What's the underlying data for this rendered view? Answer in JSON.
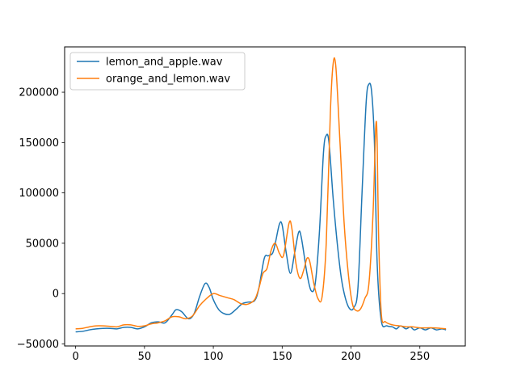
{
  "chart_data": {
    "type": "line",
    "xlim": [
      -8,
      283
    ],
    "ylim": [
      -52000,
      245000
    ],
    "x_ticks": [
      0,
      50,
      100,
      150,
      200,
      250
    ],
    "y_ticks": [
      -50000,
      0,
      50000,
      100000,
      150000,
      200000
    ],
    "x_tick_labels": [
      "0",
      "50",
      "100",
      "150",
      "200",
      "250"
    ],
    "y_tick_labels": [
      "−50000",
      "0",
      "50000",
      "100000",
      "150000",
      "200000"
    ],
    "legend_position": "top-left",
    "grid": false,
    "series": [
      {
        "name": "lemon_and_apple.wav",
        "color": "#1f77b4",
        "points": [
          [
            0,
            -38000
          ],
          [
            5,
            -37500
          ],
          [
            10,
            -36000
          ],
          [
            15,
            -35000
          ],
          [
            20,
            -34500
          ],
          [
            25,
            -34500
          ],
          [
            30,
            -35000
          ],
          [
            35,
            -33500
          ],
          [
            40,
            -33500
          ],
          [
            45,
            -35000
          ],
          [
            50,
            -33000
          ],
          [
            55,
            -29000
          ],
          [
            60,
            -28000
          ],
          [
            65,
            -29000
          ],
          [
            70,
            -21000
          ],
          [
            73,
            -16000
          ],
          [
            77,
            -18000
          ],
          [
            82,
            -25000
          ],
          [
            86,
            -20000
          ],
          [
            90,
            -3000
          ],
          [
            94,
            10000
          ],
          [
            97,
            6000
          ],
          [
            100,
            -6000
          ],
          [
            104,
            -16000
          ],
          [
            108,
            -20000
          ],
          [
            112,
            -20500
          ],
          [
            117,
            -15000
          ],
          [
            121,
            -10000
          ],
          [
            125,
            -8500
          ],
          [
            130,
            -7000
          ],
          [
            133,
            5000
          ],
          [
            137,
            35000
          ],
          [
            140,
            37500
          ],
          [
            143,
            40000
          ],
          [
            145,
            50000
          ],
          [
            148,
            69000
          ],
          [
            150,
            68000
          ],
          [
            153,
            40000
          ],
          [
            156,
            20000
          ],
          [
            159,
            40000
          ],
          [
            162,
            61000
          ],
          [
            164,
            55000
          ],
          [
            168,
            20000
          ],
          [
            171,
            3000
          ],
          [
            174,
            10000
          ],
          [
            177,
            60000
          ],
          [
            180,
            140000
          ],
          [
            182,
            157000
          ],
          [
            184,
            150000
          ],
          [
            187,
            95000
          ],
          [
            190,
            50000
          ],
          [
            193,
            15000
          ],
          [
            196,
            -5000
          ],
          [
            199,
            -15000
          ],
          [
            202,
            -14000
          ],
          [
            205,
            5000
          ],
          [
            208,
            100000
          ],
          [
            211,
            190000
          ],
          [
            213,
            208000
          ],
          [
            215,
            200000
          ],
          [
            217,
            150000
          ],
          [
            219,
            30000
          ],
          [
            222,
            -27000
          ],
          [
            226,
            -32000
          ],
          [
            230,
            -33000
          ],
          [
            233,
            -35000
          ],
          [
            236,
            -32000
          ],
          [
            240,
            -35000
          ],
          [
            243,
            -33000
          ],
          [
            246,
            -36000
          ],
          [
            250,
            -34000
          ],
          [
            254,
            -36000
          ],
          [
            258,
            -34000
          ],
          [
            262,
            -36000
          ],
          [
            266,
            -35000
          ],
          [
            269,
            -36000
          ]
        ]
      },
      {
        "name": "orange_and_lemon.wav",
        "color": "#ff7f0e",
        "points": [
          [
            0,
            -35000
          ],
          [
            5,
            -34500
          ],
          [
            10,
            -33000
          ],
          [
            15,
            -32000
          ],
          [
            20,
            -32000
          ],
          [
            25,
            -32500
          ],
          [
            30,
            -33000
          ],
          [
            35,
            -31000
          ],
          [
            40,
            -31000
          ],
          [
            45,
            -32500
          ],
          [
            50,
            -32000
          ],
          [
            55,
            -30000
          ],
          [
            60,
            -29000
          ],
          [
            65,
            -27000
          ],
          [
            70,
            -23000
          ],
          [
            75,
            -23000
          ],
          [
            80,
            -25000
          ],
          [
            85,
            -22000
          ],
          [
            90,
            -12000
          ],
          [
            95,
            -5000
          ],
          [
            100,
            0
          ],
          [
            105,
            -2000
          ],
          [
            110,
            -4000
          ],
          [
            115,
            -6000
          ],
          [
            120,
            -10000
          ],
          [
            125,
            -10500
          ],
          [
            130,
            -6000
          ],
          [
            133,
            5000
          ],
          [
            136,
            20000
          ],
          [
            139,
            25000
          ],
          [
            142,
            43000
          ],
          [
            145,
            50000
          ],
          [
            148,
            40000
          ],
          [
            151,
            38000
          ],
          [
            155,
            70000
          ],
          [
            157,
            65000
          ],
          [
            160,
            30000
          ],
          [
            163,
            15000
          ],
          [
            166,
            25000
          ],
          [
            168,
            35000
          ],
          [
            170,
            32000
          ],
          [
            173,
            10000
          ],
          [
            176,
            -5000
          ],
          [
            179,
            -3000
          ],
          [
            182,
            50000
          ],
          [
            185,
            180000
          ],
          [
            187,
            228000
          ],
          [
            189,
            225000
          ],
          [
            192,
            150000
          ],
          [
            195,
            70000
          ],
          [
            198,
            20000
          ],
          [
            201,
            -10000
          ],
          [
            204,
            -17000
          ],
          [
            207,
            -15000
          ],
          [
            210,
            -5000
          ],
          [
            213,
            10000
          ],
          [
            216,
            80000
          ],
          [
            218,
            166000
          ],
          [
            219,
            150000
          ],
          [
            220,
            60000
          ],
          [
            222,
            -20000
          ],
          [
            225,
            -28000
          ],
          [
            230,
            -31000
          ],
          [
            235,
            -32000
          ],
          [
            240,
            -33000
          ],
          [
            245,
            -33000
          ],
          [
            250,
            -34000
          ],
          [
            255,
            -34000
          ],
          [
            260,
            -34000
          ],
          [
            265,
            -34500
          ],
          [
            269,
            -35000
          ]
        ]
      }
    ]
  }
}
